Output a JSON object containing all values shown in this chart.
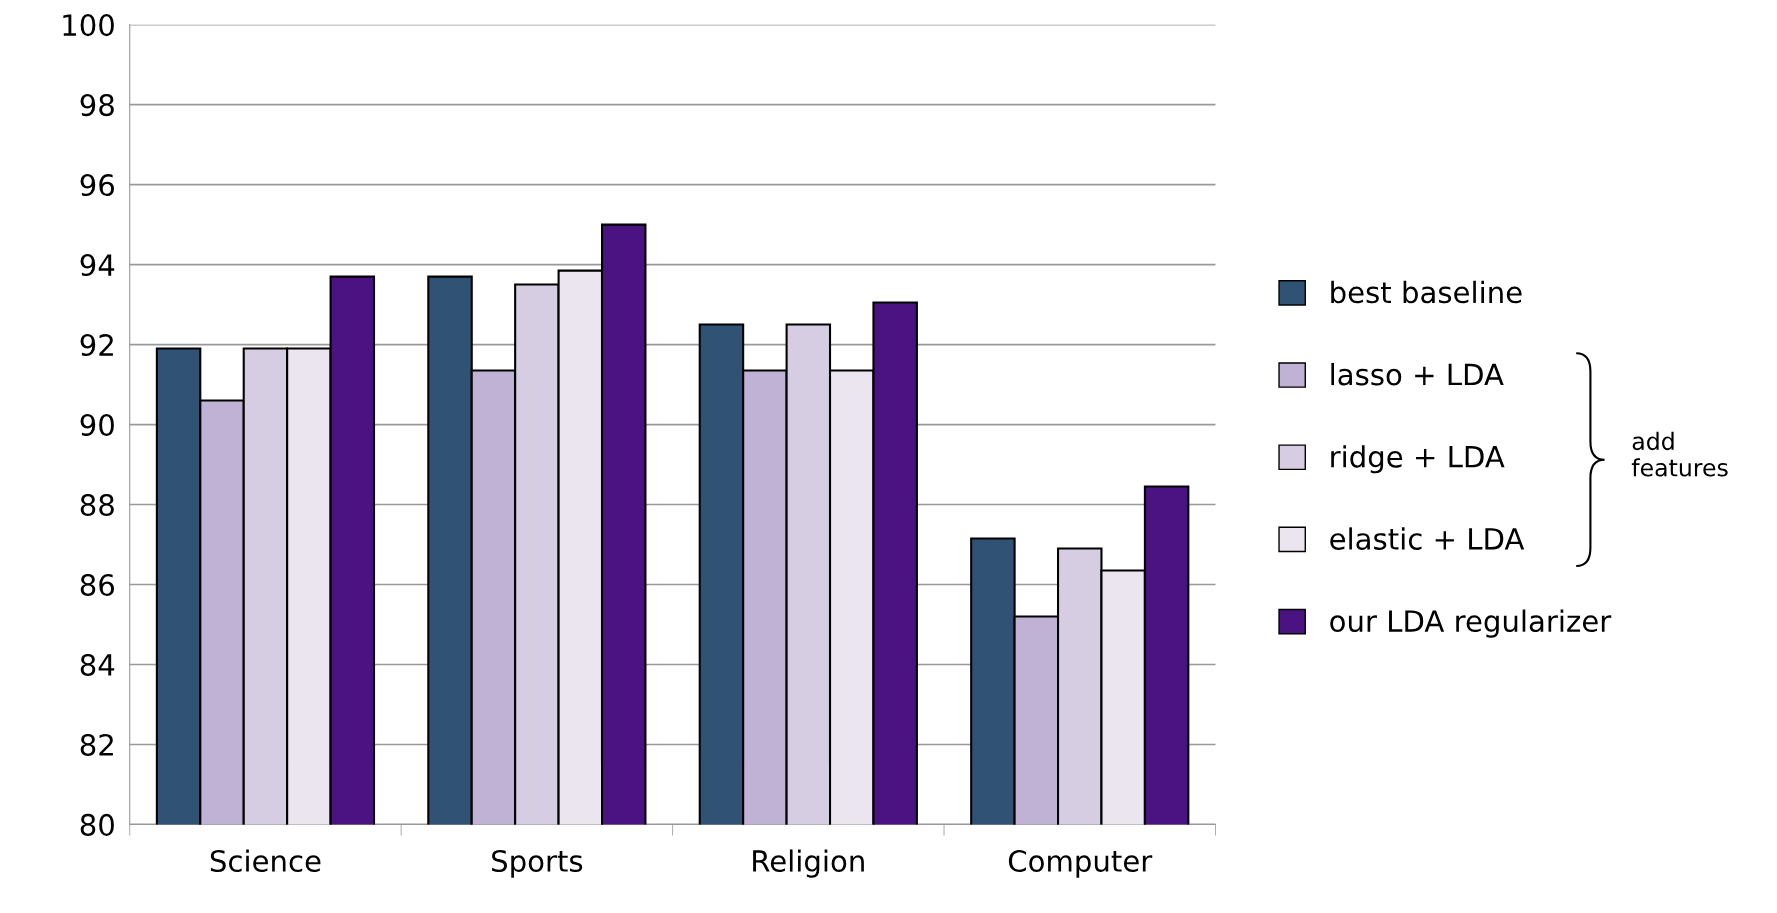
{
  "chart_data": {
    "type": "bar",
    "categories": [
      "Science",
      "Sports",
      "Religion",
      "Computer"
    ],
    "series": [
      {
        "name": "best baseline",
        "color": "#2f5275",
        "values": [
          91.9,
          93.7,
          92.5,
          87.15
        ]
      },
      {
        "name": "lasso + LDA",
        "color": "#c0b2d4",
        "values": [
          90.6,
          91.35,
          91.35,
          85.2
        ]
      },
      {
        "name": "ridge + LDA",
        "color": "#d6cde2",
        "values": [
          91.9,
          93.5,
          92.5,
          86.9
        ]
      },
      {
        "name": "elastic + LDA",
        "color": "#ebe5f0",
        "values": [
          91.9,
          93.85,
          91.35,
          86.35
        ]
      },
      {
        "name": "our LDA regularizer",
        "color": "#4b1282",
        "values": [
          93.7,
          95.0,
          93.05,
          88.45
        ]
      }
    ],
    "ylim": [
      80,
      100
    ],
    "yticks": [
      80,
      82,
      84,
      86,
      88,
      90,
      92,
      94,
      96,
      98,
      100
    ],
    "grid": "y",
    "legend": "right",
    "annotations": [
      "add\nfeatures"
    ]
  }
}
